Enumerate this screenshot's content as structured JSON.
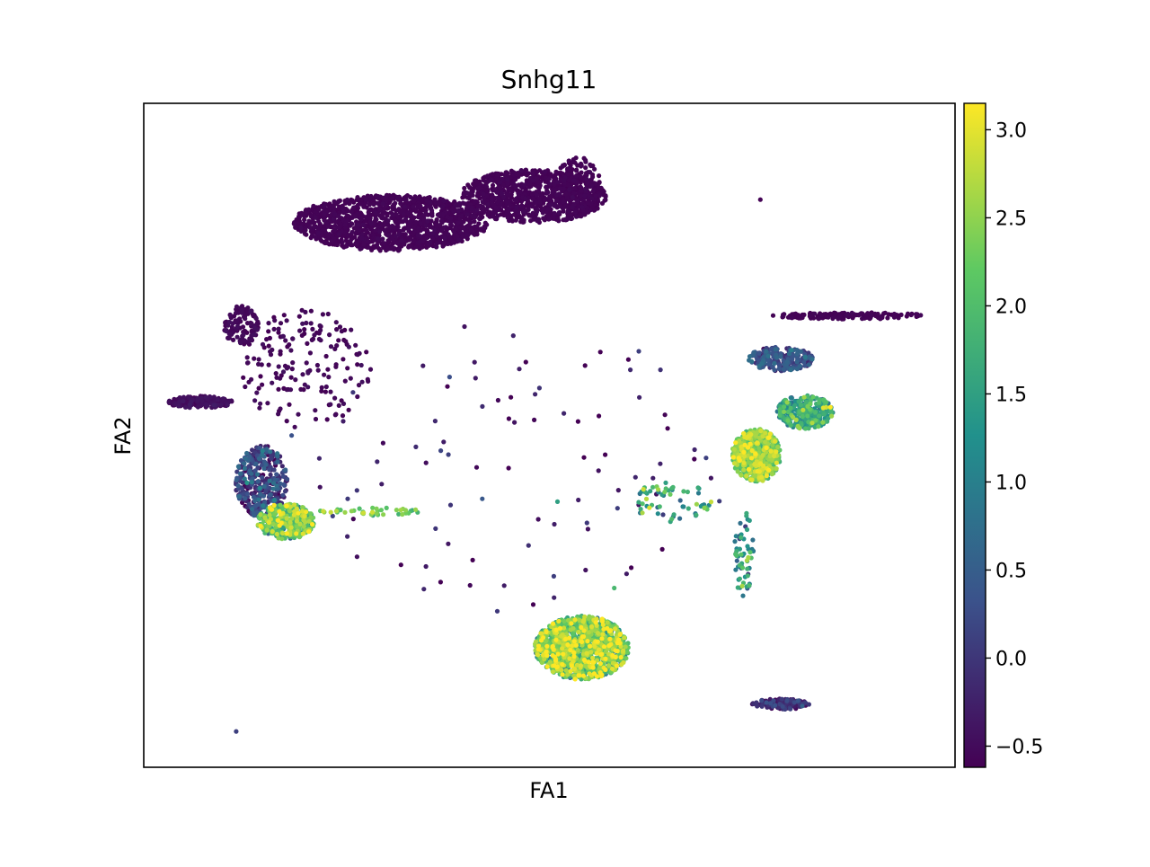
{
  "chart_data": {
    "type": "scatter",
    "title": "Snhg11",
    "xlabel": "FA1",
    "ylabel": "FA2",
    "x_ticks_shown": false,
    "y_ticks_shown": false,
    "grid": false,
    "legend": "none",
    "colormap": "viridis",
    "colormap_stops": [
      "#440154",
      "#3b528b",
      "#21918c",
      "#5ec962",
      "#fde725"
    ],
    "color_range": [
      -0.62,
      3.15
    ],
    "colorbar": {
      "position": "right",
      "ticks": [
        -0.5,
        0.0,
        0.5,
        1.0,
        1.5,
        2.0,
        2.5,
        3.0
      ],
      "tick_labels": [
        "−0.5",
        "0.0",
        "0.5",
        "1.0",
        "1.5",
        "2.0",
        "2.5",
        "3.0"
      ]
    },
    "xlim": [
      0,
      100
    ],
    "ylim": [
      0,
      100
    ],
    "series": [
      {
        "region": "top-cluster-left",
        "cx": 30.5,
        "cy": 82.0,
        "rx": 12.0,
        "ry": 4.2,
        "count": 1300,
        "value_mean": -0.6,
        "value_sd": 0.02
      },
      {
        "region": "top-cluster-right",
        "cx": 48.0,
        "cy": 86.0,
        "rx": 9.0,
        "ry": 4.0,
        "count": 900,
        "value_mean": -0.6,
        "value_sd": 0.02
      },
      {
        "region": "top-cluster-tip",
        "cx": 53.5,
        "cy": 87.5,
        "rx": 2.8,
        "ry": 4.5,
        "count": 160,
        "value_mean": -0.6,
        "value_sd": 0.02
      },
      {
        "region": "left-arm-upper",
        "cx": 12.0,
        "cy": 66.5,
        "rx": 2.2,
        "ry": 3.0,
        "count": 120,
        "value_mean": -0.55,
        "value_sd": 0.05
      },
      {
        "region": "left-arm-spur",
        "cx": 7.0,
        "cy": 55.0,
        "rx": 4.0,
        "ry": 0.9,
        "count": 180,
        "value_mean": -0.5,
        "value_sd": 0.08
      },
      {
        "region": "left-scatter",
        "cx": 20.0,
        "cy": 60.0,
        "rx": 8.0,
        "ry": 9.0,
        "count": 170,
        "value_mean": -0.55,
        "value_sd": 0.05
      },
      {
        "region": "left-mid-cluster",
        "cx": 14.5,
        "cy": 43.0,
        "rx": 3.2,
        "ry": 5.5,
        "count": 360,
        "value_mean": 0.0,
        "value_sd": 0.4
      },
      {
        "region": "left-bottom-cluster",
        "cx": 17.5,
        "cy": 37.0,
        "rx": 3.5,
        "ry": 2.7,
        "count": 380,
        "value_mean": 2.0,
        "value_sd": 0.6
      },
      {
        "region": "left-bridge",
        "cx": 28.0,
        "cy": 38.5,
        "rx": 6.5,
        "ry": 0.6,
        "count": 40,
        "value_mean": 2.2,
        "value_sd": 0.3
      },
      {
        "region": "bottom-cluster",
        "cx": 54.0,
        "cy": 18.0,
        "rx": 5.8,
        "ry": 4.8,
        "count": 1300,
        "value_mean": 2.0,
        "value_sd": 0.7
      },
      {
        "region": "bottom-stream",
        "cx": 74.0,
        "cy": 32.0,
        "rx": 1.2,
        "ry": 6.5,
        "count": 60,
        "value_mean": 1.2,
        "value_sd": 0.6
      },
      {
        "region": "right-cluster",
        "cx": 75.5,
        "cy": 47.0,
        "rx": 3.0,
        "ry": 4.0,
        "count": 650,
        "value_mean": 2.2,
        "value_sd": 0.5
      },
      {
        "region": "right-band",
        "cx": 81.5,
        "cy": 53.5,
        "rx": 3.5,
        "ry": 2.5,
        "count": 320,
        "value_mean": 1.4,
        "value_sd": 0.5
      },
      {
        "region": "right-arc",
        "cx": 78.5,
        "cy": 61.5,
        "rx": 4.0,
        "ry": 1.8,
        "count": 230,
        "value_mean": 0.2,
        "value_sd": 0.3
      },
      {
        "region": "right-streak",
        "cx": 87.0,
        "cy": 68.0,
        "rx": 9.5,
        "ry": 0.5,
        "count": 140,
        "value_mean": -0.6,
        "value_sd": 0.02
      },
      {
        "region": "bottom-right-streak",
        "cx": 78.5,
        "cy": 9.5,
        "rx": 3.5,
        "ry": 0.8,
        "count": 120,
        "value_mean": -0.2,
        "value_sd": 0.3
      },
      {
        "region": "mid-trail",
        "cx": 65.0,
        "cy": 40.0,
        "rx": 5.0,
        "ry": 3.0,
        "count": 60,
        "value_mean": 1.6,
        "value_sd": 0.6
      },
      {
        "region": "sparse-background",
        "cx": 45.0,
        "cy": 45.0,
        "rx": 28.0,
        "ry": 22.0,
        "count": 90,
        "value_mean": -0.3,
        "value_sd": 0.3
      }
    ],
    "outliers": [
      {
        "x": 11.4,
        "y": 5.4,
        "value": 0.1
      },
      {
        "x": 54.4,
        "y": 60.5,
        "value": -0.6
      },
      {
        "x": 45.0,
        "y": 52.5,
        "value": -0.6
      },
      {
        "x": 51.0,
        "y": 40.0,
        "value": 1.5
      },
      {
        "x": 76.0,
        "y": 85.5,
        "value": -0.6
      },
      {
        "x": 58.0,
        "y": 27.0,
        "value": 1.9
      }
    ]
  }
}
